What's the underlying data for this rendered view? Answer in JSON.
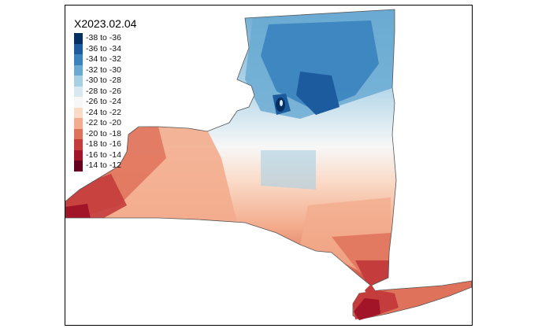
{
  "map": {
    "title": "X2023.02.04",
    "legend": [
      {
        "label": "-38 to -36",
        "color": "#053061"
      },
      {
        "label": "-36 to -34",
        "color": "#1c5c9e"
      },
      {
        "label": "-34 to -32",
        "color": "#3a83be"
      },
      {
        "label": "-32 to -30",
        "color": "#6aaad2"
      },
      {
        "label": "-30 to -28",
        "color": "#a8d0e5"
      },
      {
        "label": "-28 to -26",
        "color": "#d7e8f1"
      },
      {
        "label": "-26 to -24",
        "color": "#f7f7f7"
      },
      {
        "label": "-24 to -22",
        "color": "#fadbc8"
      },
      {
        "label": "-22 to -20",
        "color": "#f3ac8d"
      },
      {
        "label": "-20 to -18",
        "color": "#df725b"
      },
      {
        "label": "-18 to -16",
        "color": "#c43c3c"
      },
      {
        "label": "-16 to -14",
        "color": "#a21428"
      },
      {
        "label": "-14 to -12",
        "color": "#67001f"
      }
    ]
  }
}
